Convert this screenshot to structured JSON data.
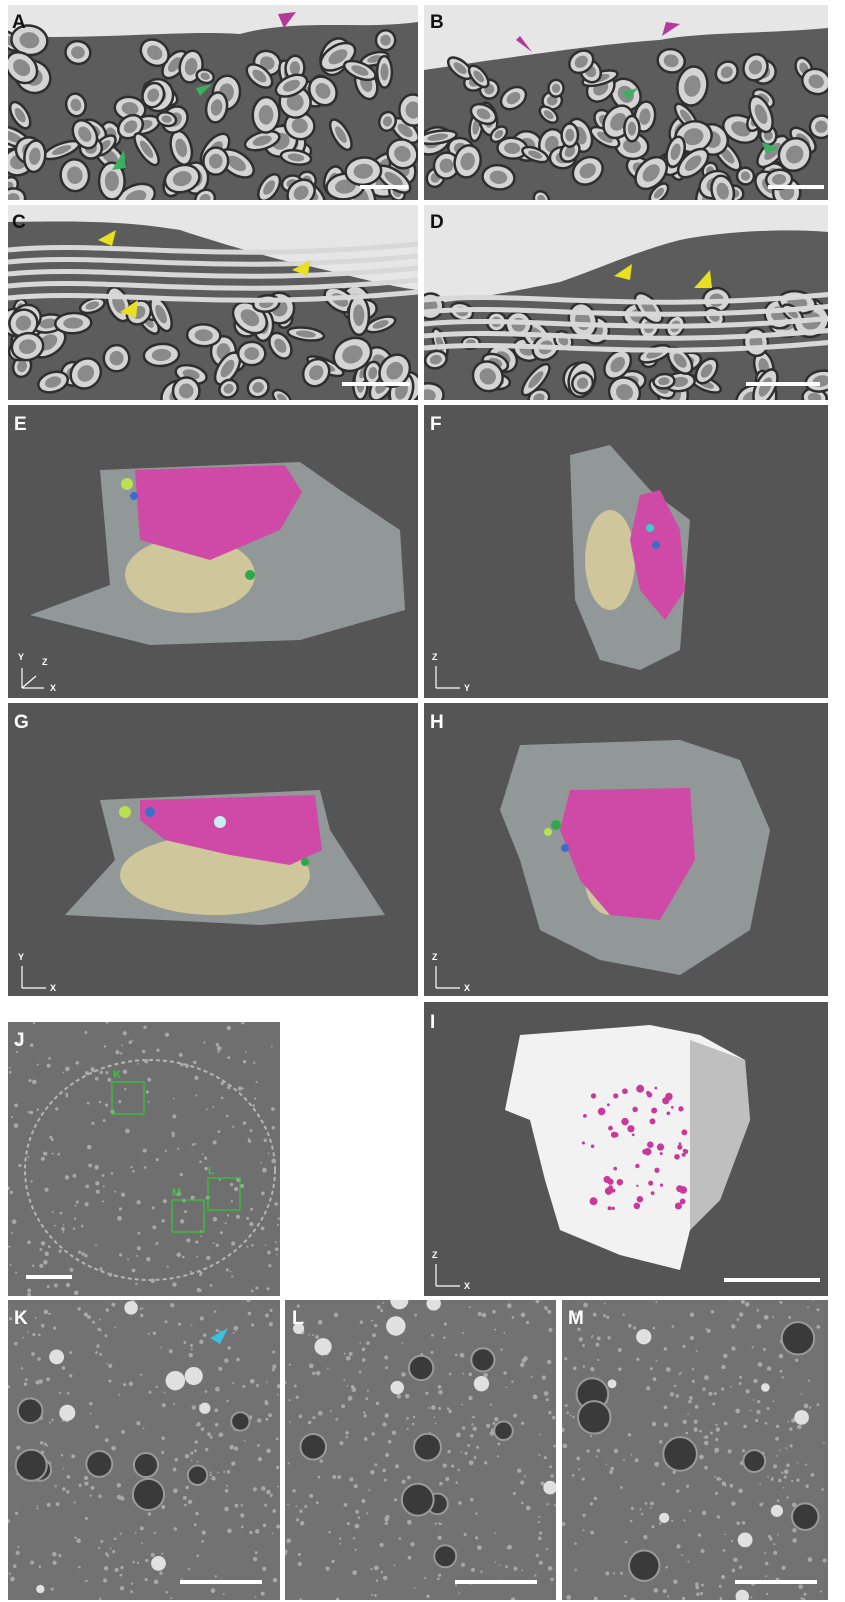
{
  "panels": [
    {
      "label": "A"
    },
    {
      "label": "B"
    },
    {
      "label": "C"
    },
    {
      "label": "D"
    },
    {
      "label": "E",
      "axis_labels": [
        "Y",
        "Z",
        "X"
      ]
    },
    {
      "label": "F",
      "axis_labels": [
        "Z",
        "Y"
      ]
    },
    {
      "label": "G",
      "axis_labels": [
        "Y",
        "X"
      ]
    },
    {
      "label": "H",
      "axis_labels": [
        "Z",
        "X"
      ]
    },
    {
      "label": "J",
      "boxes": [
        "K",
        "L",
        "M"
      ]
    },
    {
      "label": "I",
      "axis_labels": [
        "Z",
        "X"
      ]
    },
    {
      "label": "K"
    },
    {
      "label": "L"
    },
    {
      "label": "M"
    }
  ]
}
